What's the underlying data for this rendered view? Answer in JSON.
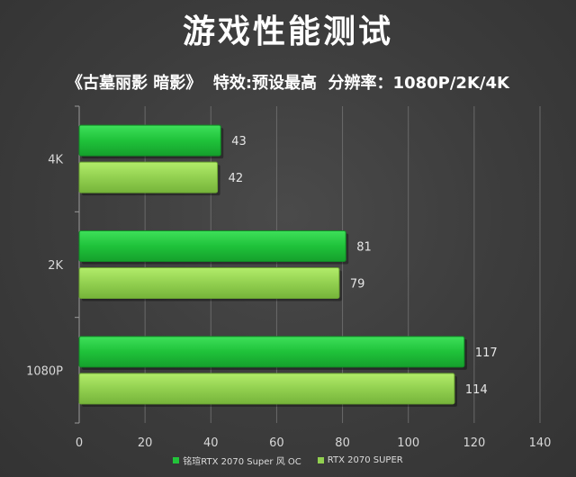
{
  "title": "游戏性能测试",
  "subtitle": "《古墓丽影 暗影》  特效:预设最高  分辨率：1080P/2K/4K",
  "chart_data": {
    "type": "bar",
    "orientation": "horizontal",
    "categories": [
      "4K",
      "2K",
      "1080P"
    ],
    "series": [
      {
        "name": "铭瑄RTX 2070 Super 风 OC",
        "values": [
          43,
          81,
          117
        ],
        "color": "#22c43a"
      },
      {
        "name": "RTX 2070 SUPER",
        "values": [
          42,
          79,
          114
        ],
        "color": "#92d050"
      }
    ],
    "xlim": [
      0,
      140
    ],
    "xticks": [
      0,
      20,
      40,
      60,
      80,
      100,
      120,
      140
    ],
    "grid": true,
    "legend": "bottom"
  }
}
